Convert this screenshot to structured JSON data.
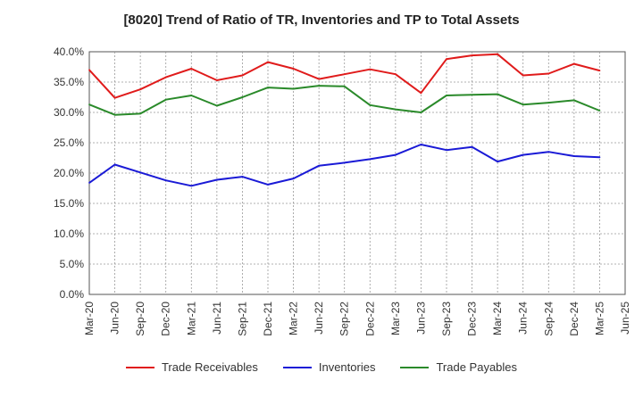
{
  "chart_data": {
    "type": "line",
    "title": "[8020]  Trend of Ratio of TR, Inventories and TP to Total Assets",
    "categories": [
      "Mar-20",
      "Jun-20",
      "Sep-20",
      "Dec-20",
      "Mar-21",
      "Jun-21",
      "Sep-21",
      "Dec-21",
      "Mar-22",
      "Jun-22",
      "Sep-22",
      "Dec-22",
      "Mar-23",
      "Jun-23",
      "Sep-23",
      "Dec-23",
      "Mar-24",
      "Jun-24",
      "Sep-24",
      "Dec-24",
      "Mar-25",
      "Jun-25"
    ],
    "ylim": [
      0,
      40
    ],
    "yticks": [
      0,
      5,
      10,
      15,
      20,
      25,
      30,
      35,
      40
    ],
    "ytick_labels": [
      "0.0%",
      "5.0%",
      "10.0%",
      "15.0%",
      "20.0%",
      "25.0%",
      "30.0%",
      "35.0%",
      "40.0%"
    ],
    "grid": true,
    "legend_position": "bottom",
    "series": [
      {
        "name": "Trade Receivables",
        "color": "#e01b1b",
        "values": [
          37.0,
          32.4,
          33.8,
          35.8,
          37.2,
          35.3,
          36.1,
          38.3,
          37.2,
          35.5,
          36.3,
          37.1,
          36.3,
          33.2,
          38.8,
          39.4,
          39.6,
          36.1,
          36.4,
          38.0,
          36.9,
          null
        ]
      },
      {
        "name": "Inventories",
        "color": "#1a1ad6",
        "values": [
          18.4,
          21.4,
          20.1,
          18.8,
          17.9,
          18.9,
          19.4,
          18.1,
          19.1,
          21.2,
          21.7,
          22.3,
          23.0,
          24.7,
          23.8,
          24.3,
          21.9,
          23.0,
          23.5,
          22.8,
          22.6,
          null
        ]
      },
      {
        "name": "Trade Payables",
        "color": "#2a8a2a",
        "values": [
          31.3,
          29.6,
          29.8,
          32.1,
          32.8,
          31.1,
          32.5,
          34.1,
          33.9,
          34.4,
          34.3,
          31.2,
          30.5,
          30.0,
          32.8,
          32.9,
          33.0,
          31.3,
          31.6,
          32.0,
          30.3,
          null
        ]
      }
    ]
  }
}
